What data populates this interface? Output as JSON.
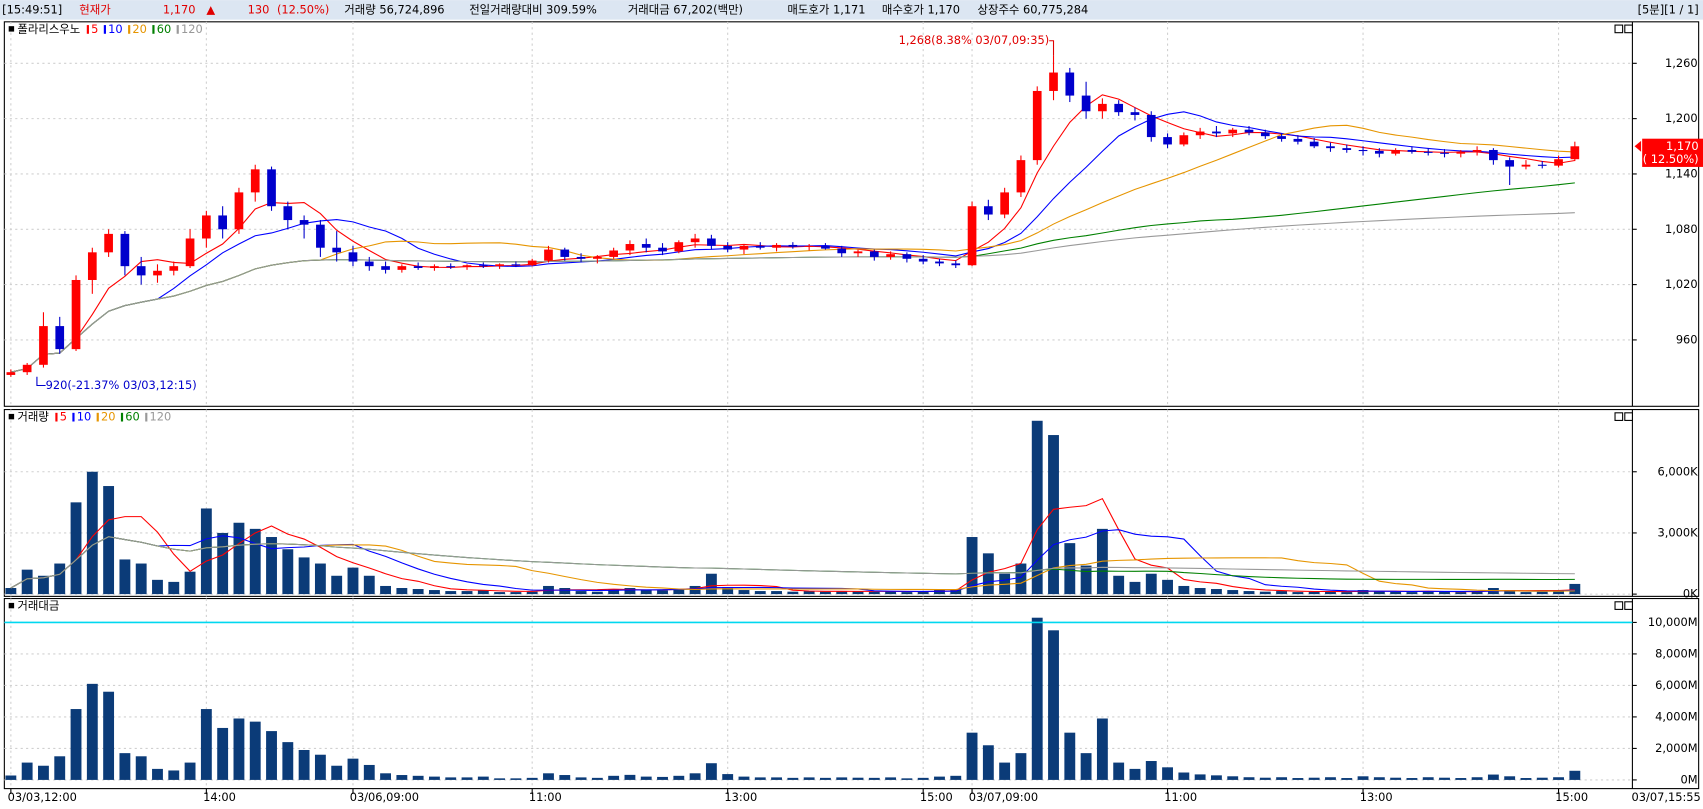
{
  "header": {
    "time": "[15:49:51]",
    "price_name": "현재가",
    "price": "1,170",
    "arrow": "▲",
    "change": "130",
    "change_pct": "(12.50%)",
    "volume": "거래량 56,724,896",
    "prev_ratio": "전일거래량대비 309.59%",
    "turnover": "거래대금 67,202(백만)",
    "ask": "매도호가 1,171",
    "bid": "매수호가 1,170",
    "shares": "상장주수 60,775,284",
    "period": "[5분][1 / 1]"
  },
  "chart_data": [
    {
      "type": "candlestick",
      "title": "폴라리스우노",
      "up_color": "#ff0000",
      "down_color": "#0000cc",
      "moving_averages": [
        {
          "name": "5",
          "color": "#ff0000"
        },
        {
          "name": "10",
          "color": "#0000ff"
        },
        {
          "name": "20",
          "color": "#e69500"
        },
        {
          "name": "60",
          "color": "#008000"
        },
        {
          "name": "120",
          "color": "#999999"
        }
      ],
      "open": [
        922,
        925,
        933,
        975,
        950,
        1025,
        1055,
        1075,
        1040,
        1030,
        1035,
        1040,
        1070,
        1095,
        1080,
        1120,
        1145,
        1105,
        1090,
        1085,
        1060,
        1055,
        1045,
        1040,
        1036,
        1040,
        1038,
        1040,
        1039,
        1041,
        1040,
        1042,
        1041,
        1046,
        1058,
        1050,
        1048,
        1050,
        1057,
        1064,
        1060,
        1056,
        1066,
        1070,
        1062,
        1058,
        1062,
        1060,
        1063,
        1061,
        1062,
        1059,
        1054,
        1056,
        1050,
        1053,
        1048,
        1045,
        1043,
        1041,
        1105,
        1096,
        1120,
        1155,
        1230,
        1250,
        1225,
        1208,
        1216,
        1207,
        1204,
        1180,
        1172,
        1182,
        1186,
        1184,
        1188,
        1185,
        1181,
        1178,
        1175,
        1170,
        1168,
        1166,
        1165,
        1162,
        1166,
        1164,
        1163,
        1162,
        1164,
        1166,
        1155,
        1148,
        1150,
        1149,
        1156
      ],
      "high": [
        928,
        935,
        990,
        985,
        1030,
        1060,
        1080,
        1078,
        1050,
        1042,
        1045,
        1080,
        1100,
        1105,
        1125,
        1150,
        1148,
        1110,
        1095,
        1090,
        1078,
        1062,
        1050,
        1045,
        1042,
        1044,
        1042,
        1043,
        1042,
        1044,
        1043,
        1045,
        1048,
        1062,
        1060,
        1054,
        1052,
        1060,
        1068,
        1070,
        1065,
        1068,
        1075,
        1074,
        1066,
        1064,
        1066,
        1065,
        1066,
        1064,
        1065,
        1062,
        1058,
        1058,
        1056,
        1055,
        1052,
        1048,
        1046,
        1110,
        1112,
        1125,
        1160,
        1235,
        1268,
        1255,
        1240,
        1222,
        1220,
        1212,
        1208,
        1184,
        1185,
        1190,
        1192,
        1190,
        1192,
        1188,
        1184,
        1182,
        1179,
        1174,
        1172,
        1170,
        1168,
        1168,
        1170,
        1168,
        1167,
        1166,
        1170,
        1168,
        1158,
        1155,
        1154,
        1160,
        1175
      ],
      "low": [
        920,
        922,
        930,
        945,
        948,
        1010,
        1050,
        1030,
        1020,
        1022,
        1030,
        1038,
        1060,
        1070,
        1075,
        1110,
        1100,
        1080,
        1070,
        1050,
        1045,
        1040,
        1035,
        1032,
        1033,
        1036,
        1035,
        1037,
        1036,
        1038,
        1037,
        1039,
        1040,
        1044,
        1046,
        1044,
        1043,
        1048,
        1052,
        1055,
        1052,
        1054,
        1060,
        1058,
        1055,
        1053,
        1058,
        1056,
        1059,
        1057,
        1058,
        1050,
        1050,
        1046,
        1047,
        1044,
        1042,
        1040,
        1038,
        1040,
        1090,
        1092,
        1115,
        1150,
        1220,
        1218,
        1200,
        1200,
        1203,
        1198,
        1175,
        1168,
        1170,
        1178,
        1180,
        1180,
        1182,
        1178,
        1175,
        1172,
        1168,
        1164,
        1163,
        1160,
        1158,
        1160,
        1162,
        1160,
        1158,
        1158,
        1160,
        1150,
        1128,
        1145,
        1146,
        1147,
        1154
      ],
      "close": [
        925,
        933,
        975,
        950,
        1025,
        1055,
        1075,
        1040,
        1030,
        1035,
        1040,
        1070,
        1095,
        1080,
        1120,
        1145,
        1105,
        1090,
        1085,
        1060,
        1055,
        1045,
        1040,
        1036,
        1040,
        1038,
        1040,
        1039,
        1041,
        1040,
        1042,
        1041,
        1046,
        1058,
        1050,
        1048,
        1050,
        1057,
        1064,
        1060,
        1056,
        1066,
        1070,
        1062,
        1058,
        1062,
        1060,
        1063,
        1061,
        1062,
        1059,
        1054,
        1056,
        1050,
        1053,
        1048,
        1045,
        1043,
        1041,
        1105,
        1096,
        1120,
        1155,
        1230,
        1250,
        1225,
        1208,
        1216,
        1207,
        1204,
        1180,
        1172,
        1182,
        1186,
        1184,
        1188,
        1185,
        1181,
        1178,
        1175,
        1170,
        1168,
        1166,
        1165,
        1162,
        1166,
        1164,
        1163,
        1162,
        1164,
        1166,
        1155,
        1148,
        1150,
        1149,
        1156,
        1170
      ],
      "high_annotation": "1,268(8.38% 03/07,09:35)",
      "low_annotation": "920(-21.37% 03/03,12:15)",
      "last_price_label": "1,170",
      "last_change_label": "( 12.50%)",
      "ylim": [
        888,
        1305
      ],
      "yticks": [
        960,
        {
          "value": 1020,
          "label": "1,020"
        },
        {
          "value": 1080,
          "label": "1,080"
        },
        {
          "value": 1140,
          "label": "1,140"
        },
        {
          "value": 1200,
          "label": "1,200"
        },
        {
          "value": 1260,
          "label": "1,260"
        }
      ],
      "grid": true
    },
    {
      "type": "bar",
      "title": "거래량",
      "color": "#0b3b78",
      "moving_averages": [
        {
          "name": "5",
          "color": "#ff0000"
        },
        {
          "name": "10",
          "color": "#0000ff"
        },
        {
          "name": "20",
          "color": "#e69500"
        },
        {
          "name": "60",
          "color": "#008000"
        },
        {
          "name": "120",
          "color": "#999999"
        }
      ],
      "values": [
        300,
        1200,
        900,
        1500,
        4500,
        6000,
        5300,
        1700,
        1500,
        700,
        600,
        1100,
        4200,
        3000,
        3500,
        3200,
        2800,
        2200,
        1800,
        1500,
        900,
        1300,
        900,
        400,
        300,
        250,
        200,
        150,
        150,
        200,
        100,
        100,
        120,
        400,
        300,
        150,
        120,
        250,
        300,
        200,
        180,
        250,
        400,
        1000,
        350,
        200,
        150,
        150,
        120,
        150,
        120,
        150,
        130,
        120,
        150,
        100,
        120,
        200,
        250,
        2800,
        2000,
        1000,
        1500,
        8500,
        7800,
        2500,
        1400,
        3200,
        900,
        600,
        1000,
        700,
        400,
        300,
        250,
        200,
        150,
        120,
        150,
        100,
        120,
        150,
        100,
        200,
        150,
        120,
        100,
        150,
        120,
        100,
        150,
        300,
        200,
        100,
        120,
        150,
        500
      ],
      "ylim": [
        -110,
        9050
      ],
      "yticks": [
        {
          "value": 0,
          "label": "0K"
        },
        {
          "value": 3000,
          "label": "3,000K"
        },
        {
          "value": 6000,
          "label": "6,000K"
        }
      ],
      "grid": true
    },
    {
      "type": "bar",
      "title": "거래대금",
      "color": "#0b3b78",
      "reference_line": 10000,
      "reference_color": "#00d8f0",
      "values": [
        280,
        1100,
        900,
        1500,
        4500,
        6100,
        5600,
        1700,
        1500,
        700,
        600,
        1100,
        4500,
        3300,
        3900,
        3700,
        3100,
        2400,
        1900,
        1600,
        900,
        1350,
        950,
        420,
        310,
        260,
        210,
        160,
        160,
        210,
        100,
        100,
        130,
        420,
        310,
        160,
        130,
        260,
        320,
        210,
        190,
        260,
        420,
        1060,
        370,
        210,
        160,
        160,
        130,
        160,
        130,
        160,
        140,
        130,
        160,
        100,
        130,
        210,
        260,
        3000,
        2200,
        1100,
        1700,
        10300,
        9500,
        3000,
        1700,
        3900,
        1100,
        700,
        1200,
        800,
        470,
        350,
        290,
        230,
        170,
        140,
        170,
        120,
        140,
        170,
        120,
        230,
        170,
        140,
        120,
        170,
        140,
        120,
        170,
        340,
        230,
        120,
        140,
        170,
        580
      ],
      "categories": [
        "03/03,12:00",
        null,
        null,
        null,
        null,
        null,
        null,
        null,
        null,
        null,
        null,
        null,
        "14:00",
        null,
        null,
        null,
        null,
        null,
        null,
        null,
        null,
        "03/06,09:00",
        null,
        null,
        null,
        null,
        null,
        null,
        null,
        null,
        null,
        null,
        "11:00",
        null,
        null,
        null,
        null,
        null,
        null,
        null,
        null,
        null,
        null,
        null,
        "13:00",
        null,
        null,
        null,
        null,
        null,
        null,
        null,
        null,
        null,
        null,
        null,
        "15:00",
        null,
        null,
        "03/07,09:00",
        null,
        null,
        null,
        null,
        null,
        null,
        null,
        null,
        null,
        null,
        null,
        "11:00",
        null,
        null,
        null,
        null,
        null,
        null,
        null,
        null,
        null,
        null,
        null,
        "13:00",
        null,
        null,
        null,
        null,
        null,
        null,
        null,
        null,
        null,
        null,
        null,
        "15:00",
        null
      ],
      "last_label": "03/07,15:55",
      "ylim": [
        -552,
        11517
      ],
      "yticks": [
        {
          "value": 0,
          "label": "0M"
        },
        {
          "value": 2000,
          "label": "2,000M"
        },
        {
          "value": 4000,
          "label": "4,000M"
        },
        {
          "value": 6000,
          "label": "6,000M"
        },
        {
          "value": 8000,
          "label": "8,000M"
        },
        {
          "value": 10000,
          "label": "10,000M"
        }
      ],
      "grid": true
    }
  ]
}
